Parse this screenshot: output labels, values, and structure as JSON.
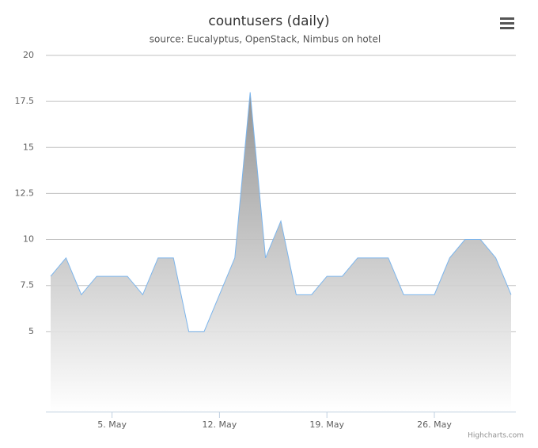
{
  "chart_data": {
    "type": "area",
    "title": "countusers (daily)",
    "subtitle": "source: Eucalyptus, OpenStack, Nimbus on hotel",
    "x": [
      1,
      2,
      3,
      4,
      5,
      6,
      7,
      8,
      9,
      10,
      11,
      12,
      13,
      14,
      15,
      16,
      17,
      18,
      19,
      20,
      21,
      22,
      23,
      24,
      25,
      26,
      27,
      28,
      29,
      30,
      31
    ],
    "series": [
      {
        "color": "#7cb5ec",
        "values": [
          8,
          9,
          7,
          8,
          8,
          8,
          7,
          9,
          9,
          5,
          5,
          7,
          9,
          18,
          9,
          11,
          7,
          7,
          8,
          8,
          9,
          9,
          9,
          7,
          7,
          7,
          9,
          10,
          10,
          9,
          7
        ]
      }
    ],
    "xlim": [
      0.69,
      31.31
    ],
    "xticks": [
      {
        "value": 5,
        "label": "5. May"
      },
      {
        "value": 12,
        "label": "12. May"
      },
      {
        "value": 19,
        "label": "19. May"
      },
      {
        "value": 26,
        "label": "26. May"
      }
    ],
    "ylim": [
      0.65,
      20
    ],
    "yticks": [
      5,
      7.5,
      10,
      12.5,
      15,
      17.5,
      20
    ],
    "grid": true,
    "credits": "Highcharts.com"
  }
}
